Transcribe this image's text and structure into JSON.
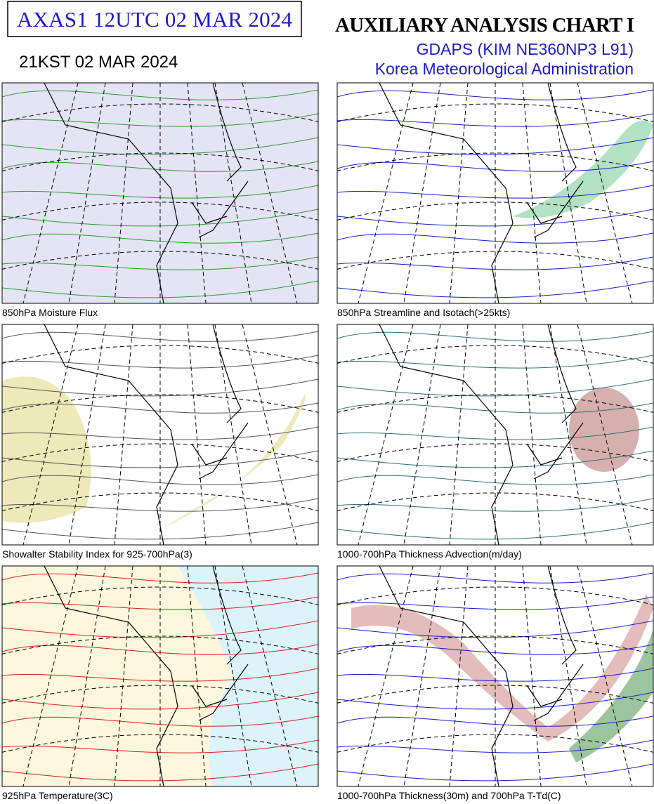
{
  "header": {
    "title": "AXAS1  12UTC 02 MAR 2024",
    "valid_time": "21KST 02 MAR 2024",
    "chart_name": "AUXILIARY ANALYSIS CHART  I",
    "model": "GDAPS (KIM NE360NP3 L91)",
    "agency": "Korea Meteorological Administration"
  },
  "panels": [
    {
      "caption": "850hPa Moisture Flux"
    },
    {
      "caption": "850hPa Streamline and Isotach(>25kts)"
    },
    {
      "caption": "Showalter Stability Index for 925-700hPa(3)"
    },
    {
      "caption": "1000-700hPa Thickness Advection(m/day)"
    },
    {
      "caption": "925hPa Temperature(3C)"
    },
    {
      "caption": "1000-700hPa Thickness(30m) and 700hPa T-Td(C)"
    }
  ]
}
